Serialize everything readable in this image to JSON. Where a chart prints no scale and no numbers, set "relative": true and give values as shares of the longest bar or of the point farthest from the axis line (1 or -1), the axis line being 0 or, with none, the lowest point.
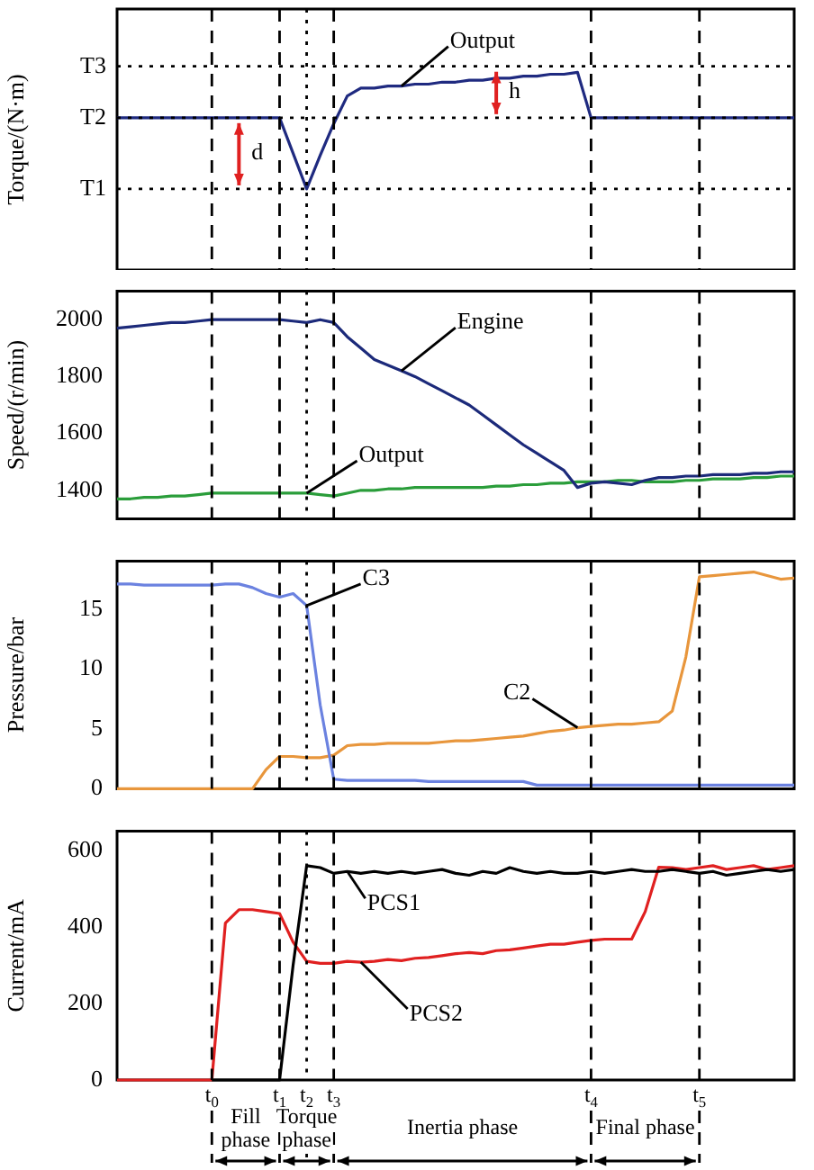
{
  "chart_data": [
    {
      "type": "line",
      "ylabel": "Torque/(N·m)",
      "relative": true,
      "tick_labels": false,
      "categories": [
        null,
        null,
        null,
        null,
        null,
        null,
        null,
        "t$_{0}$",
        null,
        null,
        null,
        null,
        "t$_{1}$",
        null,
        "t$_{2}$",
        null,
        "t$_{3}$",
        null,
        null,
        null,
        null,
        null,
        null,
        null,
        null,
        null,
        null,
        null,
        null,
        null,
        null,
        null,
        null,
        null,
        null,
        "t$_{4}$",
        null,
        null,
        null,
        null,
        null,
        null,
        null,
        "t$_{5}$",
        null,
        null,
        null,
        null,
        null,
        null,
        null
      ],
      "series": [
        {
          "name": "Output",
          "color": "#1f2a80",
          "values": [
            0.77,
            0.77,
            0.77,
            0.77,
            0.77,
            0.77,
            0.77,
            0.77,
            0.77,
            0.77,
            0.77,
            0.77,
            0.77,
            0.59,
            0.41,
            0.58,
            0.74,
            0.88,
            0.92,
            0.92,
            0.93,
            0.93,
            0.94,
            0.94,
            0.95,
            0.95,
            0.96,
            0.96,
            0.97,
            0.97,
            0.98,
            0.98,
            0.99,
            0.99,
            1,
            0.77,
            0.77,
            0.77,
            0.77,
            0.77,
            0.77,
            0.77,
            0.77,
            0.77,
            0.77,
            0.77,
            0.77,
            0.77,
            0.77,
            0.77,
            0.77
          ]
        }
      ],
      "ref_lines": [
        {
          "axis": "y",
          "value": 0.41,
          "label": "T1",
          "line_style": "dotted"
        },
        {
          "axis": "y",
          "value": 0.77,
          "label": "T2",
          "line_style": "dotted"
        },
        {
          "axis": "y",
          "value": 1.03,
          "label": "T3",
          "line_style": "dotted"
        },
        {
          "axis": "x",
          "value": "t$_{0}$",
          "line_style": "dashed"
        },
        {
          "axis": "x",
          "value": "t$_{1}$",
          "line_style": "dashed"
        },
        {
          "axis": "x",
          "value": "t$_{2}$",
          "line_style": "dotted"
        },
        {
          "axis": "x",
          "value": "t$_{3}$",
          "line_style": "dashed"
        },
        {
          "axis": "x",
          "value": "t$_{4}$",
          "line_style": "dashed"
        },
        {
          "axis": "x",
          "value": "t$_{5}$",
          "line_style": "dashed"
        }
      ],
      "annotations": [
        "d",
        "h"
      ]
    },
    {
      "type": "line",
      "ylabel": "Speed/(r/min)",
      "tick_labels": "y",
      "ylim": [
        1300,
        2100
      ],
      "yticks": [
        1400,
        1600,
        1800,
        2000
      ],
      "categories": [
        null,
        null,
        null,
        null,
        null,
        null,
        null,
        "t$_{0}$",
        null,
        null,
        null,
        null,
        "t$_{1}$",
        null,
        "t$_{2}$",
        null,
        "t$_{3}$",
        null,
        null,
        null,
        null,
        null,
        null,
        null,
        null,
        null,
        null,
        null,
        null,
        null,
        null,
        null,
        null,
        null,
        null,
        "t$_{4}$",
        null,
        null,
        null,
        null,
        null,
        null,
        null,
        "t$_{5}$",
        null,
        null,
        null,
        null,
        null,
        null,
        null
      ],
      "series": [
        {
          "name": "Engine",
          "color": "#1c2a7a",
          "values": [
            1970,
            1975,
            1980,
            1985,
            1990,
            1990,
            1995,
            2000,
            2000,
            2000,
            2000,
            2000,
            2000,
            1995,
            1990,
            2000,
            1990,
            1940,
            1900,
            1860,
            1840,
            1820,
            1800,
            1775,
            1750,
            1725,
            1700,
            1665,
            1630,
            1595,
            1560,
            1530,
            1500,
            1470,
            1410,
            1425,
            1430,
            1425,
            1420,
            1435,
            1445,
            1445,
            1450,
            1450,
            1455,
            1455,
            1455,
            1460,
            1460,
            1465,
            1465
          ]
        },
        {
          "name": "Output",
          "color": "#2a9d3a",
          "values": [
            1370,
            1370,
            1375,
            1375,
            1380,
            1380,
            1385,
            1390,
            1390,
            1390,
            1390,
            1390,
            1390,
            1390,
            1390,
            1385,
            1380,
            1390,
            1400,
            1400,
            1405,
            1405,
            1410,
            1410,
            1410,
            1410,
            1410,
            1410,
            1415,
            1415,
            1420,
            1420,
            1425,
            1425,
            1430,
            1430,
            1430,
            1435,
            1435,
            1430,
            1430,
            1430,
            1435,
            1435,
            1440,
            1440,
            1440,
            1445,
            1445,
            1450,
            1450
          ]
        }
      ],
      "ref_lines": [
        {
          "axis": "x",
          "value": "t$_{0}$",
          "line_style": "dashed"
        },
        {
          "axis": "x",
          "value": "t$_{1}$",
          "line_style": "dashed"
        },
        {
          "axis": "x",
          "value": "t$_{2}$",
          "line_style": "dotted"
        },
        {
          "axis": "x",
          "value": "t$_{3}$",
          "line_style": "dashed"
        },
        {
          "axis": "x",
          "value": "t$_{4}$",
          "line_style": "dashed"
        },
        {
          "axis": "x",
          "value": "t$_{5}$",
          "line_style": "dashed"
        }
      ]
    },
    {
      "type": "line",
      "ylabel": "Pressure/bar",
      "tick_labels": "y",
      "ylim": [
        0,
        19
      ],
      "yticks": [
        0,
        5,
        10,
        15
      ],
      "categories": [
        null,
        null,
        null,
        null,
        null,
        null,
        null,
        "t$_{0}$",
        null,
        null,
        null,
        null,
        "t$_{1}$",
        null,
        "t$_{2}$",
        null,
        "t$_{3}$",
        null,
        null,
        null,
        null,
        null,
        null,
        null,
        null,
        null,
        null,
        null,
        null,
        null,
        null,
        null,
        null,
        null,
        null,
        "t$_{4}$",
        null,
        null,
        null,
        null,
        null,
        null,
        null,
        "t$_{5}$",
        null,
        null,
        null,
        null,
        null,
        null,
        null
      ],
      "series": [
        {
          "name": "C3",
          "color": "#6b82e0",
          "values": [
            17.1,
            17.1,
            17,
            17,
            17,
            17,
            17,
            17,
            17.1,
            17.1,
            16.8,
            16.3,
            16,
            16.3,
            15.3,
            7,
            0.8,
            0.7,
            0.7,
            0.7,
            0.7,
            0.7,
            0.7,
            0.6,
            0.6,
            0.6,
            0.6,
            0.6,
            0.6,
            0.6,
            0.6,
            0.3,
            0.3,
            0.3,
            0.3,
            0.3,
            0.3,
            0.3,
            0.3,
            0.3,
            0.3,
            0.3,
            0.3,
            0.3,
            0.3,
            0.3,
            0.3,
            0.3,
            0.3,
            0.3,
            0.3
          ]
        },
        {
          "name": "C2",
          "color": "#e8963c",
          "values": [
            0,
            0,
            0,
            0,
            0,
            0,
            0,
            0,
            0,
            0,
            0,
            1.6,
            2.7,
            2.7,
            2.6,
            2.6,
            2.8,
            3.6,
            3.7,
            3.7,
            3.8,
            3.8,
            3.8,
            3.8,
            3.9,
            4,
            4,
            4.1,
            4.2,
            4.3,
            4.4,
            4.6,
            4.8,
            4.9,
            5.1,
            5.2,
            5.3,
            5.4,
            5.4,
            5.5,
            5.6,
            6.5,
            11,
            17.7,
            17.8,
            17.9,
            18,
            18.1,
            17.8,
            17.5,
            17.6
          ]
        }
      ],
      "ref_lines": [
        {
          "axis": "x",
          "value": "t$_{0}$",
          "line_style": "dashed"
        },
        {
          "axis": "x",
          "value": "t$_{1}$",
          "line_style": "dashed"
        },
        {
          "axis": "x",
          "value": "t$_{2}$",
          "line_style": "dotted"
        },
        {
          "axis": "x",
          "value": "t$_{3}$",
          "line_style": "dashed"
        },
        {
          "axis": "x",
          "value": "t$_{4}$",
          "line_style": "dashed"
        },
        {
          "axis": "x",
          "value": "t$_{5}$",
          "line_style": "dashed"
        }
      ]
    },
    {
      "type": "line",
      "ylabel": "Current/mA",
      "ylim": [
        0,
        650
      ],
      "yticks": [
        0,
        200,
        400,
        600
      ],
      "categories": [
        null,
        null,
        null,
        null,
        null,
        null,
        null,
        "t$_{0}$",
        null,
        null,
        null,
        null,
        "t$_{1}$",
        null,
        "t$_{2}$",
        null,
        "t$_{3}$",
        null,
        null,
        null,
        null,
        null,
        null,
        null,
        null,
        null,
        null,
        null,
        null,
        null,
        null,
        null,
        null,
        null,
        null,
        "t$_{4}$",
        null,
        null,
        null,
        null,
        null,
        null,
        null,
        "t$_{5}$",
        null,
        null,
        null,
        null,
        null,
        null,
        null
      ],
      "series": [
        {
          "name": "PCS1",
          "color": "#000000",
          "values": [
            null,
            null,
            null,
            null,
            null,
            null,
            null,
            0,
            0,
            0,
            0,
            0,
            0,
            300,
            560,
            555,
            540,
            545,
            540,
            545,
            540,
            545,
            540,
            545,
            550,
            540,
            535,
            545,
            540,
            555,
            545,
            540,
            545,
            540,
            540,
            545,
            540,
            545,
            550,
            545,
            545,
            550,
            545,
            540,
            545,
            535,
            540,
            545,
            550,
            545,
            550
          ]
        },
        {
          "name": "PCS2",
          "color": "#e02020",
          "values": [
            0,
            0,
            0,
            0,
            0,
            0,
            0,
            0,
            410,
            445,
            445,
            440,
            435,
            360,
            310,
            305,
            305,
            310,
            308,
            310,
            315,
            312,
            318,
            320,
            325,
            330,
            333,
            330,
            338,
            340,
            345,
            350,
            355,
            355,
            360,
            365,
            368,
            368,
            368,
            440,
            556,
            555,
            550,
            555,
            560,
            550,
            555,
            560,
            550,
            555,
            560
          ]
        }
      ],
      "ref_lines": [
        {
          "axis": "x",
          "value": "t$_{0}$",
          "line_style": "dashed"
        },
        {
          "axis": "x",
          "value": "t$_{1}$",
          "line_style": "dashed"
        },
        {
          "axis": "x",
          "value": "t$_{2}$",
          "line_style": "dotted"
        },
        {
          "axis": "x",
          "value": "t$_{3}$",
          "line_style": "dashed"
        },
        {
          "axis": "x",
          "value": "t$_{4}$",
          "line_style": "dashed"
        },
        {
          "axis": "x",
          "value": "t$_{5}$",
          "line_style": "dashed"
        }
      ],
      "annotations": [
        "Fill phase",
        "Torque phase",
        "Inertia phase",
        "Final phase"
      ]
    }
  ]
}
